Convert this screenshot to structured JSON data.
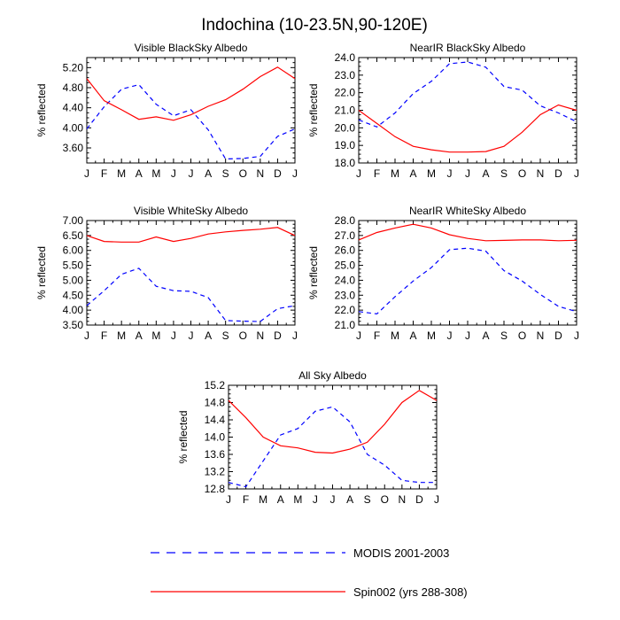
{
  "title": "Indochina (10-23.5N,90-120E)",
  "months": [
    "J",
    "F",
    "M",
    "A",
    "M",
    "J",
    "J",
    "A",
    "S",
    "O",
    "N",
    "D",
    "J"
  ],
  "legend": {
    "modis": "MODIS 2001-2003",
    "spin": "Spin002 (yrs 288-308)"
  },
  "colors": {
    "modis": "#0000ff",
    "spin": "#ff0000",
    "axis": "#000000"
  },
  "chart_data": [
    {
      "type": "line",
      "title": "Visible BlackSky Albedo",
      "ylabel": "% reflected",
      "ylim": [
        3.3,
        5.4
      ],
      "yticks": [
        "3.60",
        "4.00",
        "4.40",
        "4.80",
        "5.20"
      ],
      "x": [
        "J",
        "F",
        "M",
        "A",
        "M",
        "J",
        "J",
        "A",
        "S",
        "O",
        "N",
        "D",
        "J"
      ],
      "series": [
        {
          "name": "MODIS 2001-2003",
          "style": "dashed",
          "values": [
            3.98,
            4.42,
            4.77,
            4.86,
            4.47,
            4.24,
            4.36,
            3.96,
            3.38,
            3.39,
            3.43,
            3.83,
            3.98
          ]
        },
        {
          "name": "Spin002 (yrs 288-308)",
          "style": "solid",
          "values": [
            4.98,
            4.54,
            4.36,
            4.17,
            4.22,
            4.15,
            4.26,
            4.43,
            4.56,
            4.77,
            5.02,
            5.21,
            4.98
          ]
        }
      ]
    },
    {
      "type": "line",
      "title": "NearIR BlackSky Albedo",
      "ylabel": "% reflected",
      "ylim": [
        18.0,
        24.0
      ],
      "yticks": [
        "18.0",
        "19.0",
        "20.0",
        "21.0",
        "22.0",
        "23.0",
        "24.0"
      ],
      "x": [
        "J",
        "F",
        "M",
        "A",
        "M",
        "J",
        "J",
        "A",
        "S",
        "O",
        "N",
        "D",
        "J"
      ],
      "series": [
        {
          "name": "MODIS 2001-2003",
          "style": "dashed",
          "values": [
            20.45,
            20.05,
            20.85,
            21.95,
            22.65,
            23.65,
            23.75,
            23.45,
            22.35,
            22.15,
            21.25,
            20.85,
            20.35
          ]
        },
        {
          "name": "Spin002 (yrs 288-308)",
          "style": "solid",
          "values": [
            21.0,
            20.25,
            19.5,
            18.95,
            18.75,
            18.62,
            18.62,
            18.65,
            18.95,
            19.75,
            20.75,
            21.3,
            21.0
          ]
        }
      ]
    },
    {
      "type": "line",
      "title": "Visible WhiteSky Albedo",
      "ylabel": "% reflected",
      "ylim": [
        3.5,
        7.0
      ],
      "yticks": [
        "3.50",
        "4.00",
        "4.50",
        "5.00",
        "5.50",
        "6.00",
        "6.50",
        "7.00"
      ],
      "x": [
        "J",
        "F",
        "M",
        "A",
        "M",
        "J",
        "J",
        "A",
        "S",
        "O",
        "N",
        "D",
        "J"
      ],
      "series": [
        {
          "name": "MODIS 2001-2003",
          "style": "dashed",
          "values": [
            4.15,
            4.65,
            5.2,
            5.4,
            4.8,
            4.65,
            4.63,
            4.42,
            3.65,
            3.63,
            3.62,
            4.05,
            4.15
          ]
        },
        {
          "name": "Spin002 (yrs 288-308)",
          "style": "solid",
          "values": [
            6.5,
            6.3,
            6.28,
            6.28,
            6.45,
            6.3,
            6.4,
            6.55,
            6.62,
            6.67,
            6.71,
            6.77,
            6.5
          ]
        }
      ]
    },
    {
      "type": "line",
      "title": "NearIR WhiteSky Albedo",
      "ylabel": "% reflected",
      "ylim": [
        21.0,
        28.0
      ],
      "yticks": [
        "21.0",
        "22.0",
        "23.0",
        "24.0",
        "25.0",
        "26.0",
        "27.0",
        "28.0"
      ],
      "x": [
        "J",
        "F",
        "M",
        "A",
        "M",
        "J",
        "J",
        "A",
        "S",
        "O",
        "N",
        "D",
        "J"
      ],
      "series": [
        {
          "name": "MODIS 2001-2003",
          "style": "dashed",
          "values": [
            21.9,
            21.75,
            22.9,
            23.95,
            24.85,
            26.05,
            26.15,
            25.95,
            24.65,
            23.95,
            23.05,
            22.25,
            21.9
          ]
        },
        {
          "name": "Spin002 (yrs 288-308)",
          "style": "solid",
          "values": [
            26.7,
            27.2,
            27.5,
            27.75,
            27.5,
            27.05,
            26.8,
            26.65,
            26.67,
            26.7,
            26.7,
            26.65,
            26.68
          ]
        }
      ]
    },
    {
      "type": "line",
      "title": "All Sky Albedo",
      "ylabel": "% reflected",
      "ylim": [
        12.8,
        15.2
      ],
      "yticks": [
        "12.8",
        "13.2",
        "13.6",
        "14.0",
        "14.4",
        "14.8",
        "15.2"
      ],
      "x": [
        "J",
        "F",
        "M",
        "A",
        "M",
        "J",
        "J",
        "A",
        "S",
        "O",
        "N",
        "D",
        "J"
      ],
      "series": [
        {
          "name": "MODIS 2001-2003",
          "style": "dashed",
          "values": [
            12.95,
            12.85,
            13.45,
            14.05,
            14.2,
            14.6,
            14.7,
            14.35,
            13.6,
            13.35,
            13.0,
            12.95,
            12.95
          ]
        },
        {
          "name": "Spin002 (yrs 288-308)",
          "style": "solid",
          "values": [
            14.85,
            14.45,
            14.0,
            13.8,
            13.75,
            13.65,
            13.63,
            13.72,
            13.88,
            14.3,
            14.8,
            15.08,
            14.85
          ]
        }
      ]
    }
  ]
}
